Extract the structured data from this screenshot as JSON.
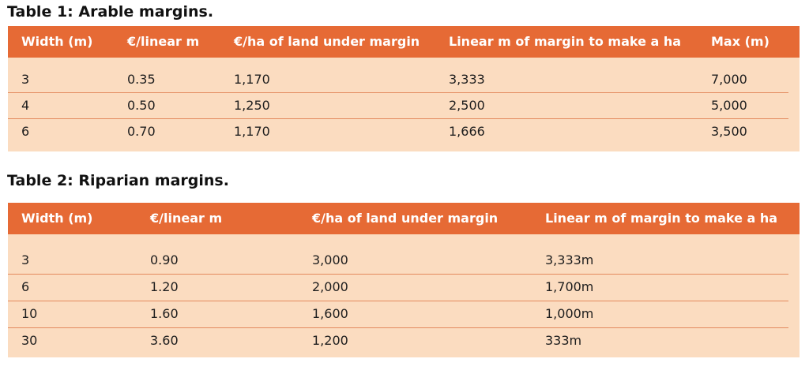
{
  "table1": {
    "caption": "Table 1: Arable margins.",
    "headers": [
      "Width (m)",
      "€/linear m",
      "€/ha of land under margin",
      "Linear m of margin to make a ha",
      "Max (m)"
    ],
    "rows": [
      [
        "3",
        "0.35",
        "1,170",
        "3,333",
        "7,000"
      ],
      [
        "4",
        "0.50",
        "1,250",
        "2,500",
        "5,000"
      ],
      [
        "6",
        "0.70",
        "1,170",
        "1,666",
        "3,500"
      ]
    ]
  },
  "table2": {
    "caption": "Table 2: Riparian margins.",
    "headers": [
      "Width (m)",
      "€/linear m",
      "€/ha of land under margin",
      "Linear m of margin to make a ha"
    ],
    "rows": [
      [
        "3",
        "0.90",
        "3,000",
        "3,333m"
      ],
      [
        "6",
        "1.20",
        "2,000",
        "1,700m"
      ],
      [
        "10",
        "1.60",
        "1,600",
        "1,000m"
      ],
      [
        "30",
        "3.60",
        "1,200",
        "333m"
      ]
    ]
  },
  "colors": {
    "header_bg": "#e66a35",
    "body_bg": "#fbdcc0",
    "rule": "#e38a5e"
  }
}
